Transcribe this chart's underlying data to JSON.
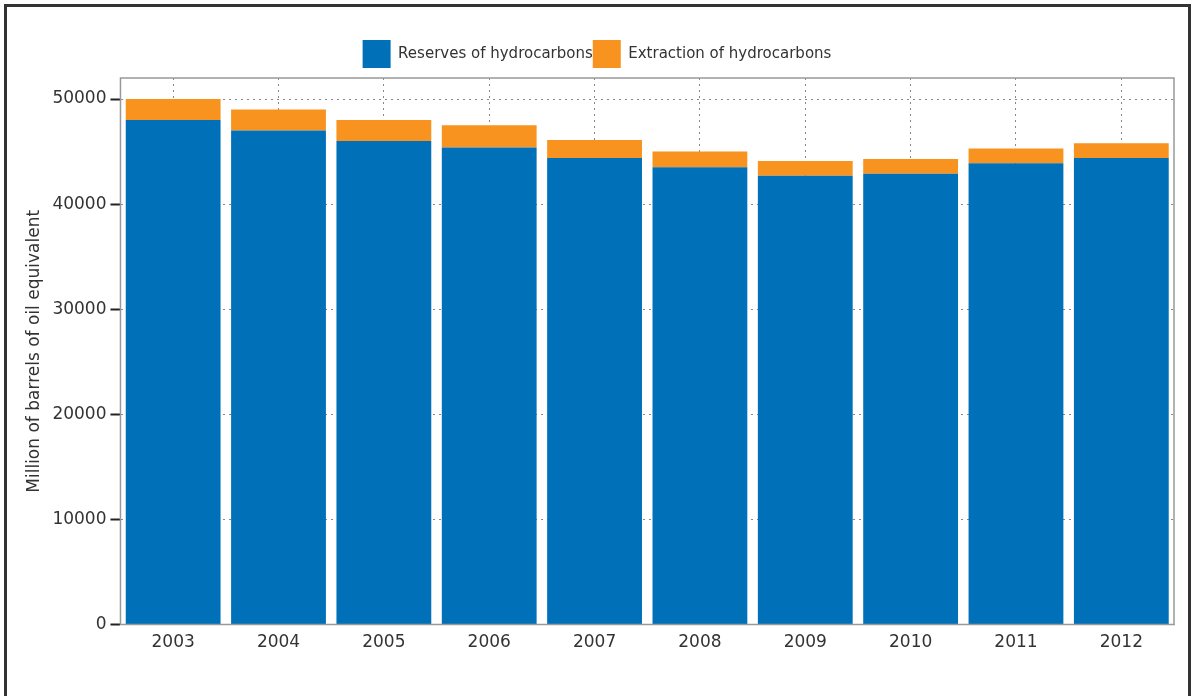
{
  "chart_data": {
    "type": "bar",
    "stacked": true,
    "ylabel": "Million of barrels of oil equivalent",
    "categories": [
      "2003",
      "2004",
      "2005",
      "2006",
      "2007",
      "2008",
      "2009",
      "2010",
      "2011",
      "2012"
    ],
    "series": [
      {
        "name": "Reserves of hydrocarbons",
        "color": "#0070b9",
        "values": [
          48000,
          47000,
          46000,
          45400,
          44400,
          43500,
          42700,
          42900,
          43900,
          44400
        ]
      },
      {
        "name": "Extraction of hydrocarbons",
        "color": "#f7931e",
        "values": [
          2000,
          2000,
          2000,
          2100,
          1700,
          1500,
          1400,
          1400,
          1400,
          1400
        ]
      }
    ],
    "ylim": [
      0,
      52000
    ],
    "yticks": [
      0,
      10000,
      20000,
      30000,
      40000,
      50000
    ],
    "grid": true,
    "legend": "top"
  }
}
